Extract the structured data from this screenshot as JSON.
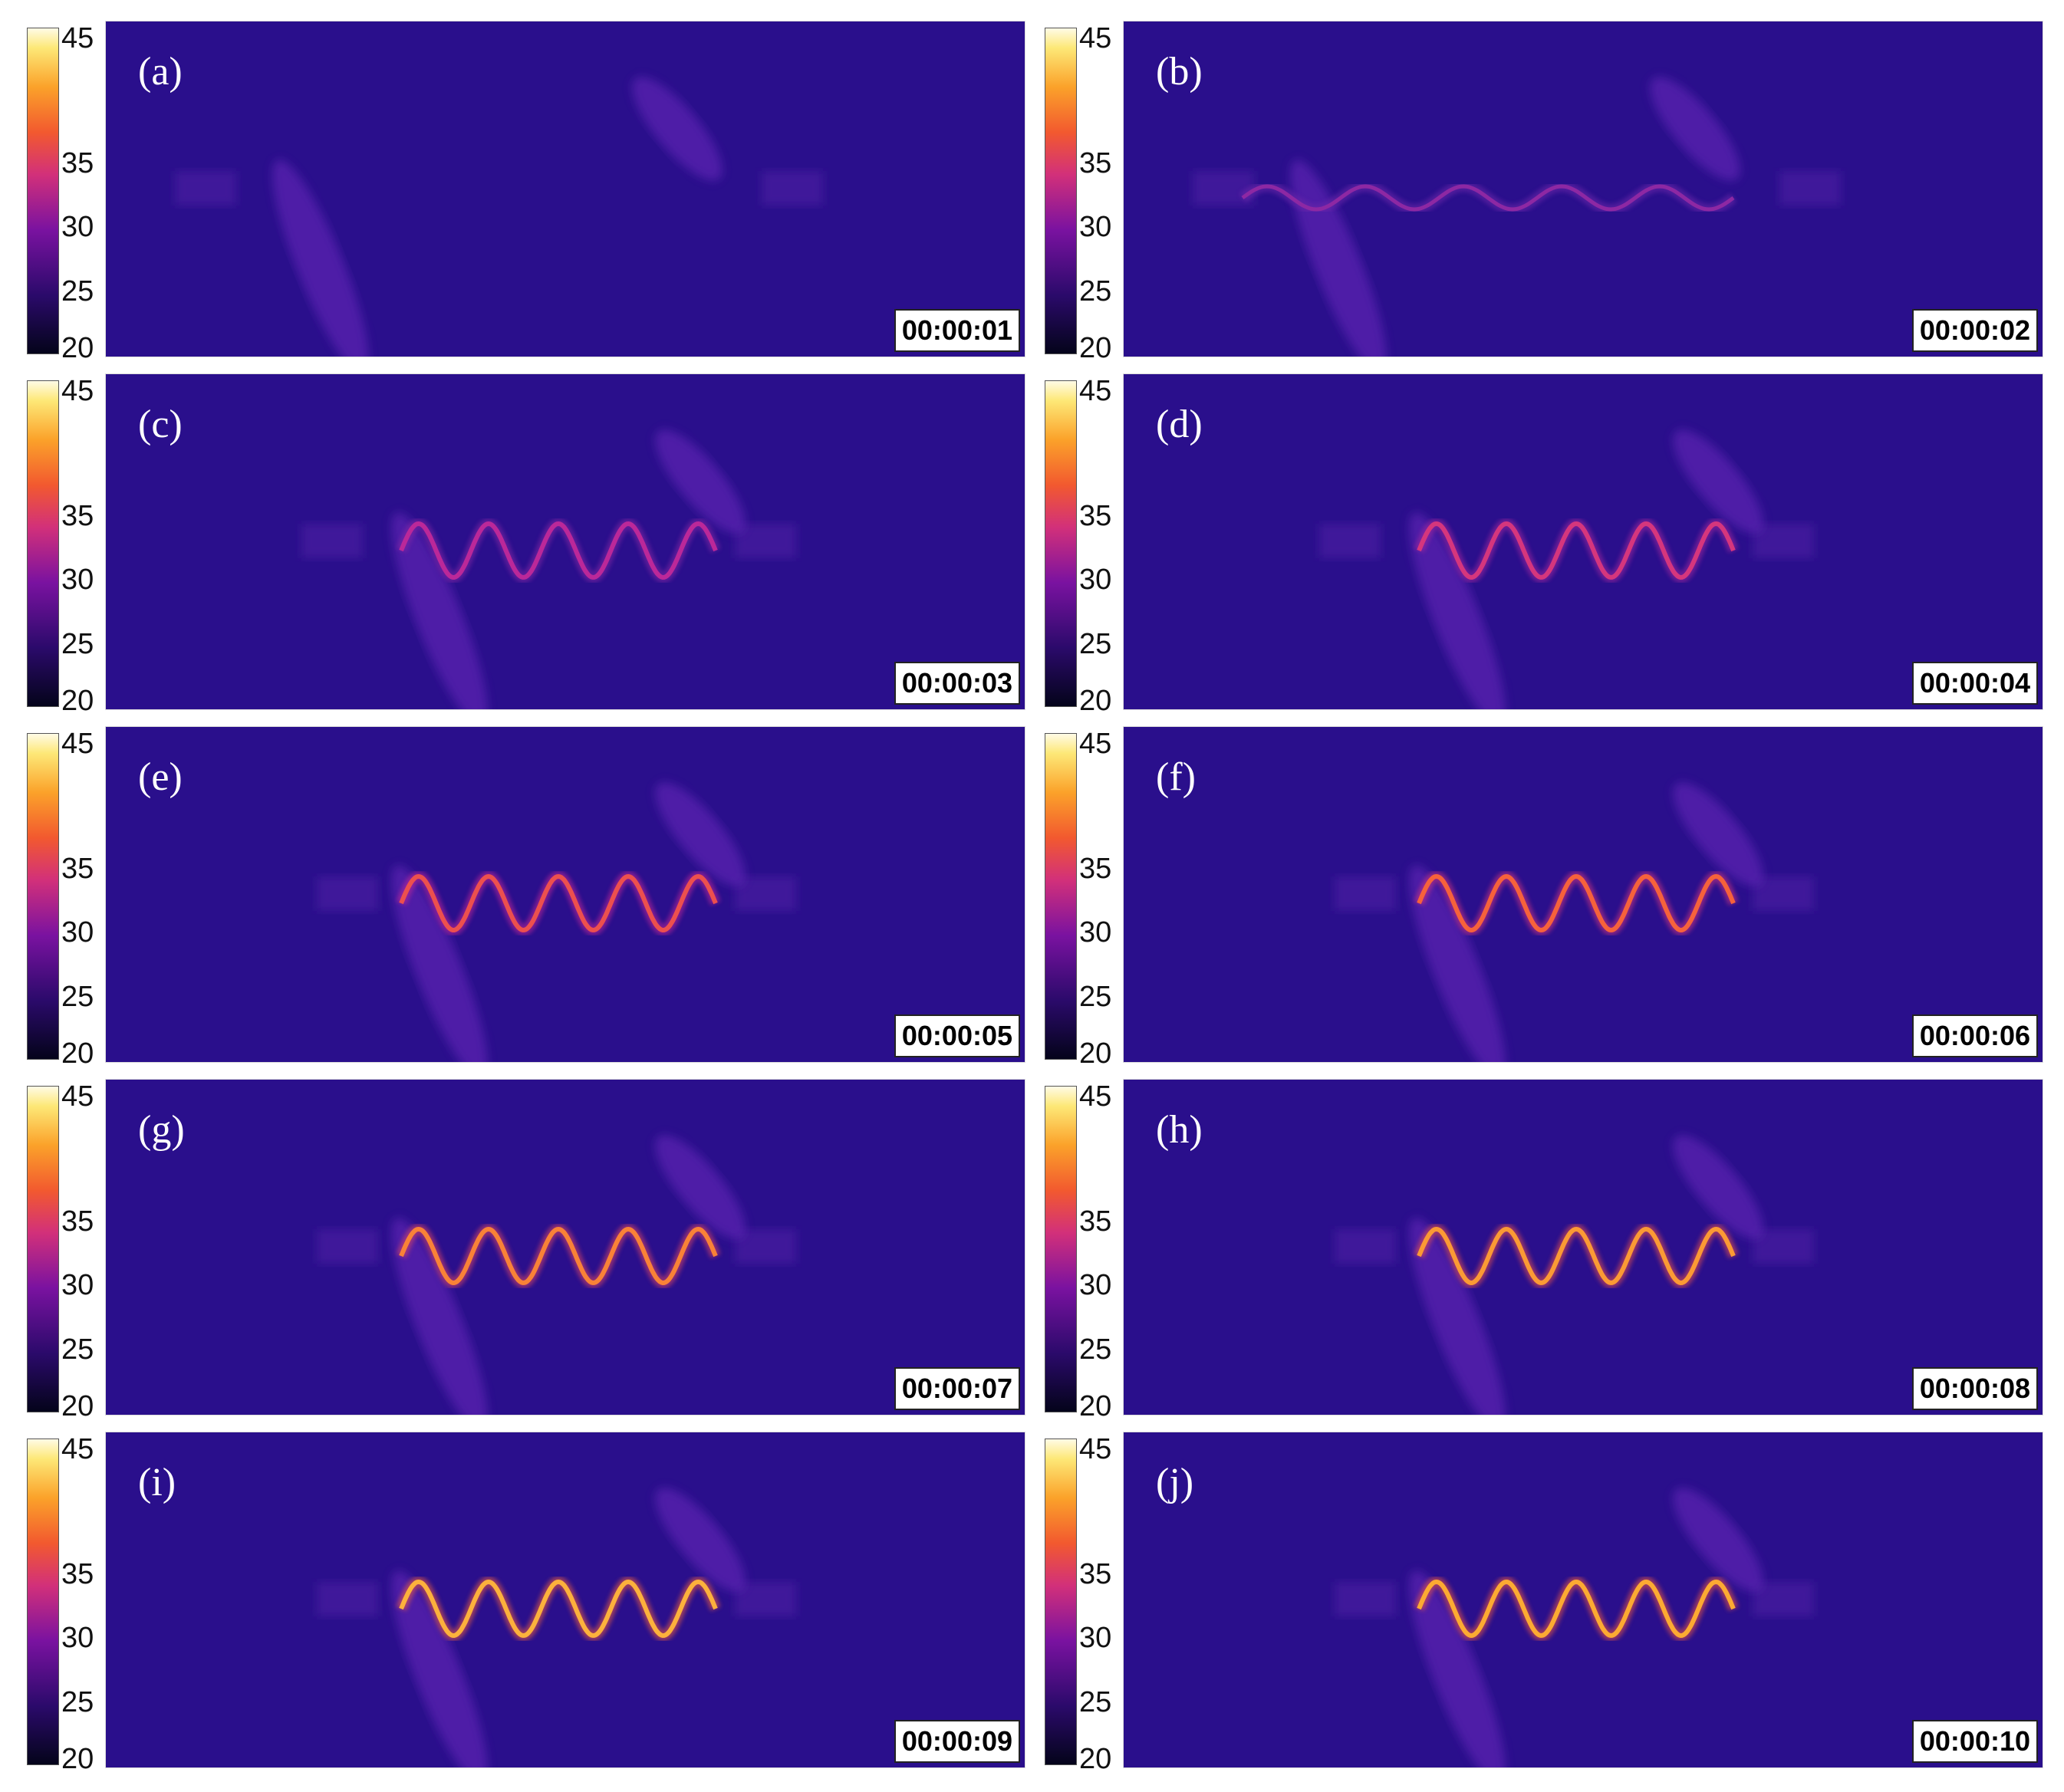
{
  "colorbar": {
    "ticks": [
      "45",
      "35",
      "30",
      "25",
      "20"
    ]
  },
  "colors": {
    "background": "#2a0f8c",
    "cold": "#04041a",
    "hot": "#fffbe6"
  },
  "panels": [
    {
      "label": "(a)",
      "time": "00:00:01",
      "coil_heat": 0.0
    },
    {
      "label": "(b)",
      "time": "00:00:02",
      "coil_heat": 0.12
    },
    {
      "label": "(c)",
      "time": "00:00:03",
      "coil_heat": 0.3
    },
    {
      "label": "(d)",
      "time": "00:00:04",
      "coil_heat": 0.42
    },
    {
      "label": "(e)",
      "time": "00:00:05",
      "coil_heat": 0.55
    },
    {
      "label": "(f)",
      "time": "00:00:06",
      "coil_heat": 0.62
    },
    {
      "label": "(g)",
      "time": "00:00:07",
      "coil_heat": 0.7
    },
    {
      "label": "(h)",
      "time": "00:00:08",
      "coil_heat": 0.76
    },
    {
      "label": "(i)",
      "time": "00:00:09",
      "coil_heat": 0.82
    },
    {
      "label": "(j)",
      "time": "00:00:10",
      "coil_heat": 0.8
    }
  ]
}
